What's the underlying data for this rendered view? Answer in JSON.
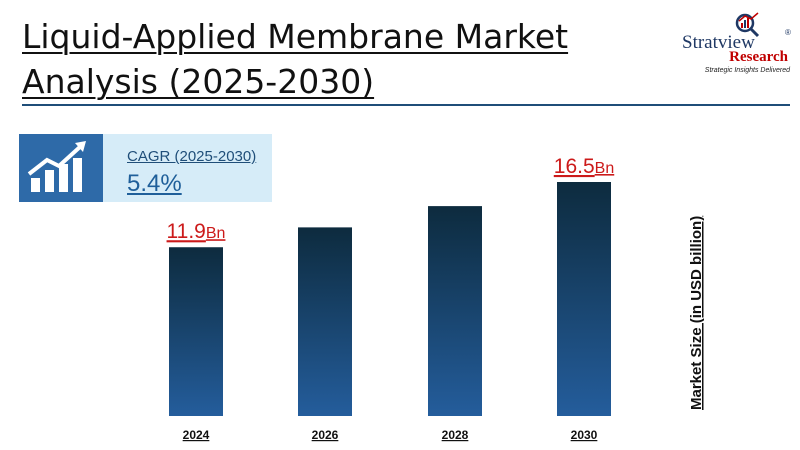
{
  "header": {
    "title_line1": "Liquid-Applied Membrane Market",
    "title_line2": "Analysis (2025-2030)"
  },
  "logo": {
    "brand": "Stratview",
    "registered": "®",
    "sub": "Research",
    "tagline": "Strategic Insights Delivered",
    "icon": "magnifier-chart-icon"
  },
  "cagr": {
    "label": "CAGR (2025-2030)",
    "value": "5.4%",
    "icon": "growth-chart-icon"
  },
  "colors": {
    "bar_top": "#0d2b3e",
    "bar_bottom": "#245d9c",
    "label_red": "#cc1a1a",
    "accent_blue": "#1f4e79"
  },
  "chart_data": {
    "type": "bar",
    "categories": [
      "2024",
      "2026",
      "2028",
      "2030"
    ],
    "values": [
      11.9,
      13.3,
      14.8,
      16.5
    ],
    "data_labels": [
      "11.9",
      "",
      "",
      "16.5"
    ],
    "data_label_unit": "Bn",
    "ylabel": "Market Size (in USD billion)",
    "xlabel": "",
    "title": "",
    "grid": false
  }
}
